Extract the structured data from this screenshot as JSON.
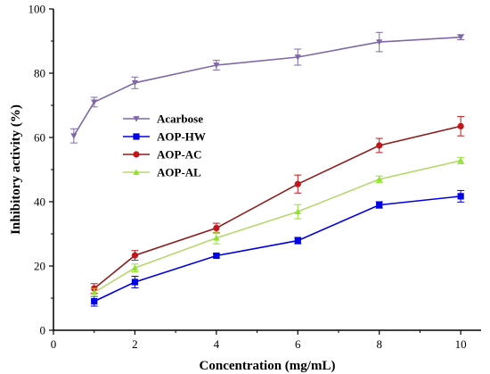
{
  "chart_data": {
    "type": "line",
    "xlabel": "Concentration (mg/mL)",
    "ylabel": "Inhibitory activity (%)",
    "xlim": [
      0,
      10.5
    ],
    "ylim": [
      0,
      100
    ],
    "xticks": [
      0,
      2,
      4,
      6,
      8,
      10
    ],
    "yticks": [
      0,
      20,
      40,
      60,
      80,
      100
    ],
    "grid": false,
    "legend_position": "center-left",
    "series": [
      {
        "name": "Acarbose",
        "marker": "triangle-down",
        "color": "#7F68A8",
        "x": [
          0.5,
          1,
          2,
          4,
          6,
          8,
          10
        ],
        "y": [
          60.5,
          71,
          77,
          82.5,
          85,
          89.7,
          91.2
        ],
        "err": [
          2.2,
          1.5,
          1.8,
          1.5,
          2.5,
          3.0,
          0.8
        ]
      },
      {
        "name": "AOP-HW",
        "marker": "square",
        "color": "#0000E6",
        "x": [
          1,
          2,
          4,
          6,
          8,
          10
        ],
        "y": [
          9,
          15,
          23.2,
          27.9,
          39,
          41.7
        ],
        "err": [
          1.5,
          1.8,
          0.6,
          1.0,
          1.0,
          1.8
        ]
      },
      {
        "name": "AOP-AC",
        "marker": "circle",
        "color": "#C0161C",
        "line_color": "#8E1C1C",
        "x": [
          1,
          2,
          4,
          6,
          8,
          10
        ],
        "y": [
          13,
          23.3,
          31.8,
          45.5,
          57.5,
          63.5
        ],
        "err": [
          1.5,
          1.5,
          1.5,
          2.8,
          2.2,
          3.0
        ]
      },
      {
        "name": "AOP-AL",
        "marker": "triangle-up",
        "color": "#8EE32A",
        "line_color": "#B6D86E",
        "x": [
          1,
          2,
          4,
          6,
          8,
          10
        ],
        "y": [
          11.8,
          19.4,
          28.7,
          36.9,
          47,
          52.8
        ],
        "err": [
          1.2,
          1.2,
          1.8,
          2.2,
          1.0,
          1.0
        ]
      }
    ]
  }
}
